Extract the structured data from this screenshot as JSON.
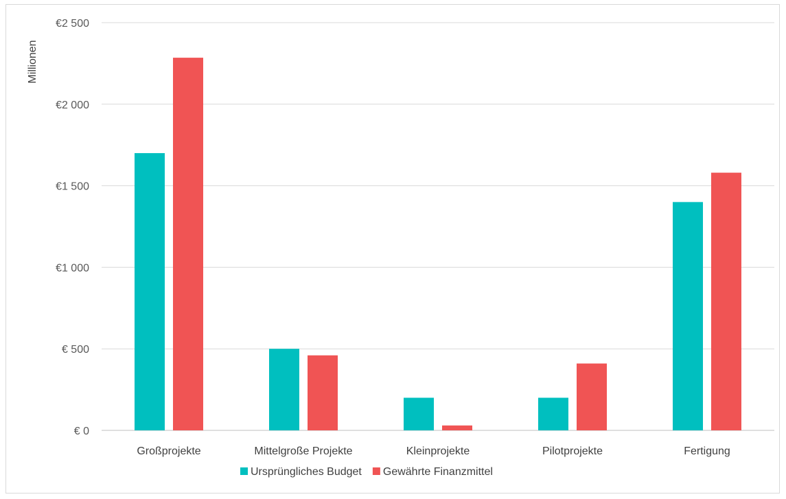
{
  "chart_data": {
    "type": "bar",
    "title": "",
    "xlabel": "",
    "ylabel": "Millionen",
    "ylim": [
      0,
      2500
    ],
    "yticks": [
      0,
      500,
      1000,
      1500,
      2000,
      2500
    ],
    "ytick_labels": [
      "€ 0",
      "€ 500",
      "€1 000",
      "€1 500",
      "€2 000",
      "€2 500"
    ],
    "grid": true,
    "legend_position": "bottom",
    "categories": [
      "Großprojekte",
      "Mittelgroße Projekte",
      "Kleinprojekte",
      "Pilotprojekte",
      "Fertigung"
    ],
    "series": [
      {
        "name": "Ursprüngliches Budget",
        "color": "#00bfbf",
        "values": [
          1700,
          500,
          200,
          200,
          1400
        ]
      },
      {
        "name": "Gewährte Finanzmittel",
        "color": "#f05454",
        "values": [
          2285,
          460,
          30,
          410,
          1580
        ]
      }
    ]
  }
}
